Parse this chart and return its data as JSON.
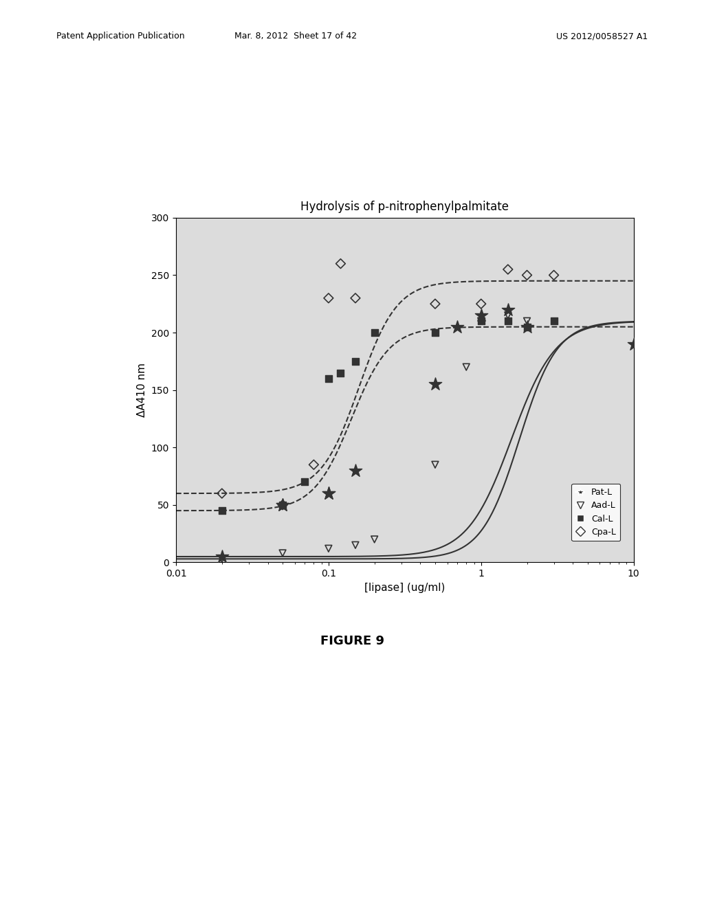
{
  "title": "Hydrolysis of p-nitrophenylpalmitate",
  "xlabel": "[lipase] (ug/ml)",
  "ylabel": "ΔA410 nm",
  "ylim": [
    0,
    300
  ],
  "yticks": [
    0,
    50,
    100,
    150,
    200,
    250,
    300
  ],
  "xlim_log": [
    -2,
    1
  ],
  "background_color": "#dcdcdc",
  "figure_caption": "FIGURE 9",
  "header_left": "Patent Application Publication",
  "header_mid": "Mar. 8, 2012  Sheet 17 of 42",
  "header_right": "US 2012/0058527 A1",
  "series": [
    {
      "name": "Pat-L",
      "marker": "*",
      "marker_size": 8,
      "color": "#333333",
      "curve_style": "solid",
      "Vmax": 210,
      "Vbaseline": 5,
      "EC50_log": 0.2,
      "n": 3.0,
      "scatter_x": [
        0.02,
        0.05,
        0.05,
        0.1,
        0.1,
        0.15,
        0.5,
        0.7,
        1.0,
        1.5,
        2.0,
        10.0
      ],
      "scatter_y": [
        5,
        50,
        50,
        60,
        60,
        80,
        155,
        205,
        215,
        220,
        205,
        190
      ]
    },
    {
      "name": "Aad-L",
      "marker": "v",
      "marker_size": 7,
      "color": "#333333",
      "curve_style": "solid",
      "Vmax": 210,
      "Vbaseline": 3,
      "EC50_log": 0.25,
      "n": 3.5,
      "scatter_x": [
        0.02,
        0.05,
        0.1,
        0.15,
        0.2,
        0.5,
        0.8,
        1.0,
        1.5,
        2.0
      ],
      "scatter_y": [
        3,
        8,
        12,
        15,
        20,
        85,
        170,
        210,
        215,
        210
      ]
    },
    {
      "name": "Cal-L",
      "marker": "s",
      "marker_size": 7,
      "color": "#333333",
      "curve_style": "dashed",
      "Vmax": 205,
      "Vbaseline": 45,
      "EC50_log": -0.85,
      "n": 3.5,
      "scatter_x": [
        0.02,
        0.05,
        0.07,
        0.1,
        0.12,
        0.15,
        0.2,
        0.5,
        1.0,
        1.5,
        2.0,
        3.0
      ],
      "scatter_y": [
        45,
        50,
        70,
        160,
        165,
        175,
        200,
        200,
        210,
        210,
        205,
        210
      ]
    },
    {
      "name": "Cpa-L",
      "marker": "D",
      "marker_size": 7,
      "color": "#333333",
      "curve_style": "dashed",
      "Vmax": 245,
      "Vbaseline": 60,
      "EC50_log": -0.8,
      "n": 3.5,
      "scatter_x": [
        0.02,
        0.05,
        0.08,
        0.1,
        0.12,
        0.15,
        0.5,
        1.0,
        1.5,
        2.0,
        3.0
      ],
      "scatter_y": [
        60,
        50,
        85,
        230,
        260,
        230,
        225,
        225,
        255,
        250,
        250
      ]
    }
  ]
}
